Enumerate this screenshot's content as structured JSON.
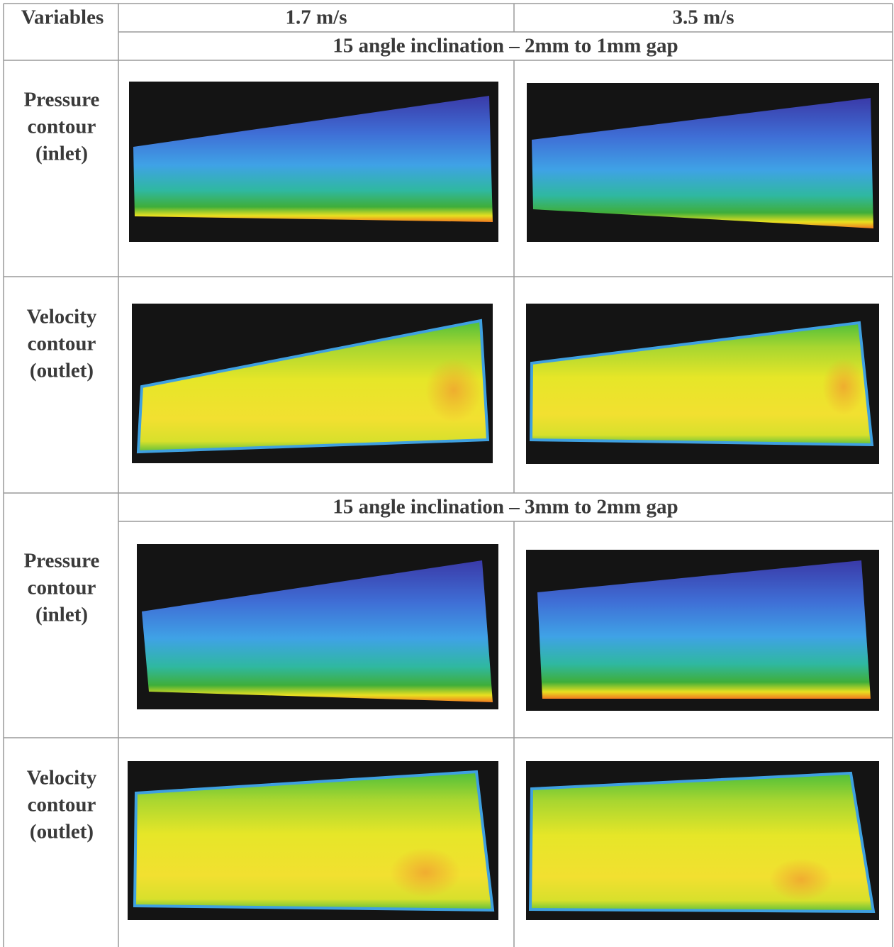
{
  "header": {
    "corner": "Variables",
    "columns": [
      "1.7 m/s",
      "3.5 m/s"
    ]
  },
  "sections": [
    {
      "title": "15 angle inclination – 2mm to 1mm gap",
      "rows": [
        {
          "label": [
            "Pressure",
            "contour",
            "(inlet)"
          ]
        },
        {
          "label": [
            "Velocity",
            "contour",
            "(outlet)"
          ]
        }
      ]
    },
    {
      "title": "15 angle inclination – 3mm to 2mm gap",
      "rows": [
        {
          "label": [
            "Pressure",
            "contour",
            "(inlet)"
          ]
        },
        {
          "label": [
            "Velocity",
            "contour",
            "(outlet)"
          ]
        }
      ]
    }
  ]
}
